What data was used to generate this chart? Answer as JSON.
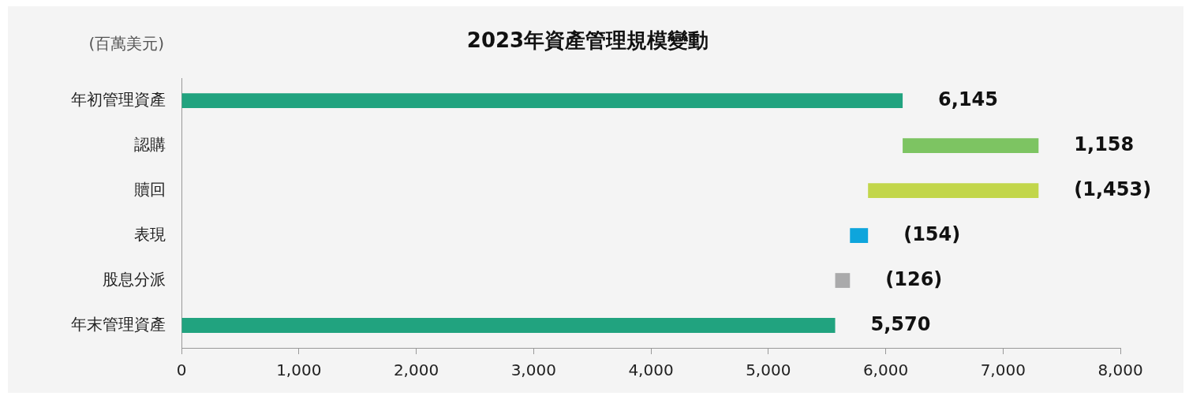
{
  "chart_data": {
    "type": "bar",
    "orientation": "horizontal",
    "title": "2023年資產管理規模變動",
    "annotations": [
      "(百萬美元)"
    ],
    "categories": [
      "年初管理資產",
      "認購",
      "贖回",
      "表現",
      "股息分派",
      "年末管理資產"
    ],
    "values": [
      6145,
      1158,
      -1453,
      -154,
      -126,
      5570
    ],
    "base": [
      0,
      6145,
      7303,
      5850,
      5696,
      0
    ],
    "colors": [
      "#21a37f",
      "#7dc462",
      "#c2d64a",
      "#0ea5dc",
      "#aaaaab",
      "#21a37f"
    ],
    "value_labels": [
      "6,145",
      "1,158",
      "(1,453)",
      "(154)",
      "(126)",
      "5,570"
    ],
    "xlim": [
      0,
      8000
    ],
    "xticks": [
      {
        "value": 0,
        "label": "0"
      },
      {
        "value": 1000,
        "label": "1,000"
      },
      {
        "value": 2000,
        "label": "2,000"
      },
      {
        "value": 3000,
        "label": "3,000"
      },
      {
        "value": 4000,
        "label": "4,000"
      },
      {
        "value": 5000,
        "label": "5,000"
      },
      {
        "value": 6000,
        "label": "6,000"
      },
      {
        "value": 7000,
        "label": "7,000"
      },
      {
        "value": 8000,
        "label": "8,000"
      }
    ],
    "grid": false,
    "legend": false
  }
}
